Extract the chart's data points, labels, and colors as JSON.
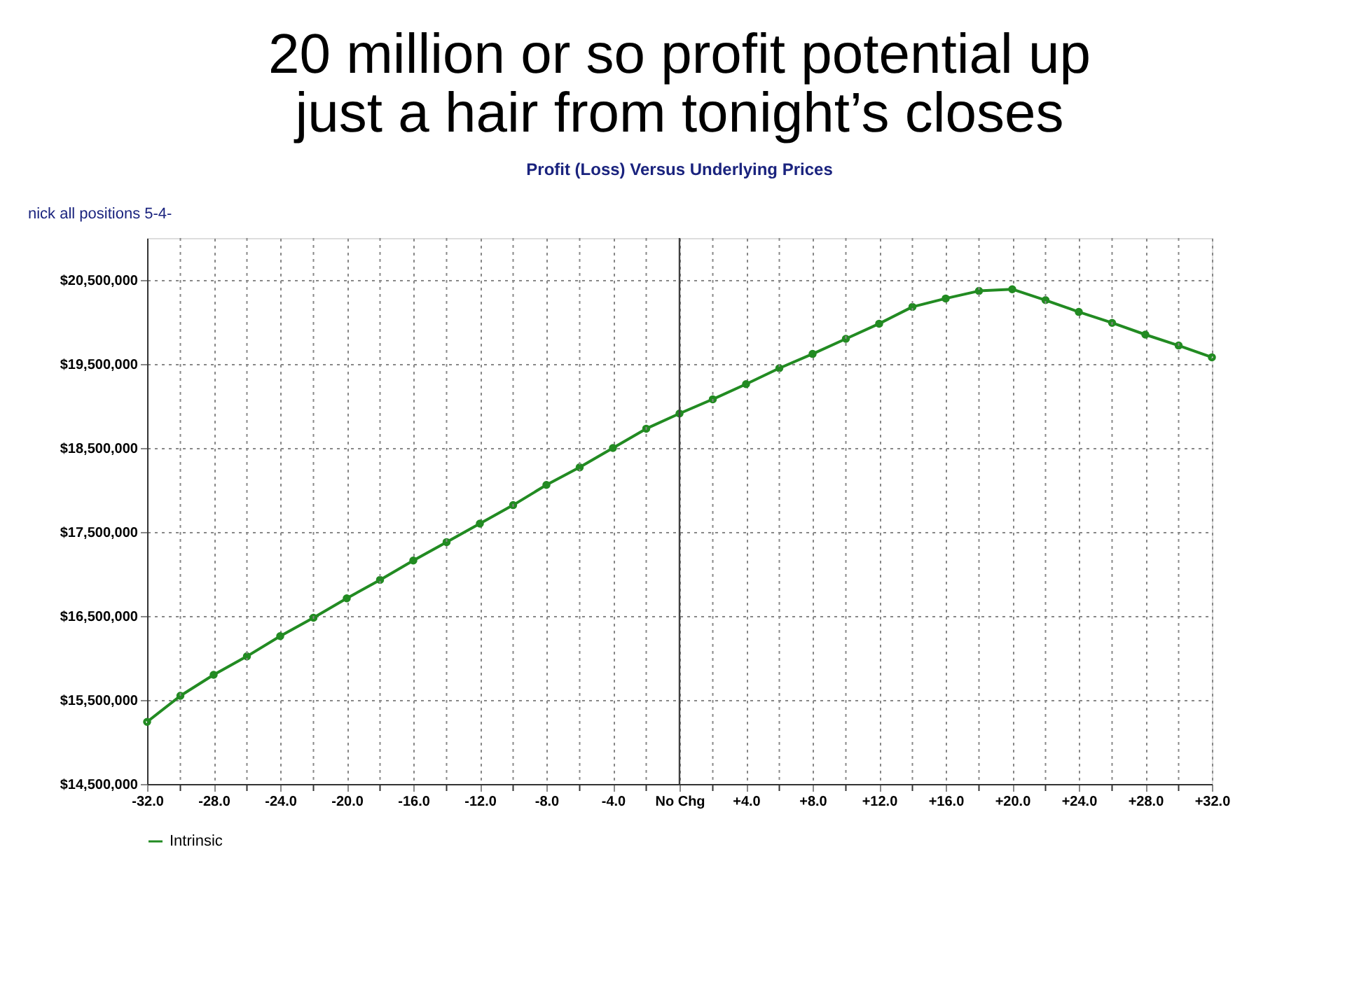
{
  "chart_data": {
    "type": "line",
    "title": "20 million or so profit potential up\njust a hair from tonight’s closes",
    "subtitle": "Profit (Loss) Versus Underlying Prices",
    "annotations": [
      "nick all positions 5-4-"
    ],
    "x": [
      -32,
      -30,
      -28,
      -26,
      -24,
      -22,
      -20,
      -18,
      -16,
      -14,
      -12,
      -10,
      -8,
      -6,
      -4,
      -2,
      0,
      2,
      4,
      6,
      8,
      10,
      12,
      14,
      16,
      18,
      20,
      22,
      24,
      26,
      28,
      30,
      32
    ],
    "series": [
      {
        "name": "Intrinsic",
        "color": "#228b22",
        "values": [
          15240000,
          15550000,
          15800000,
          16020000,
          16260000,
          16480000,
          16710000,
          16930000,
          17160000,
          17380000,
          17600000,
          17820000,
          18060000,
          18270000,
          18500000,
          18730000,
          18910000,
          19080000,
          19260000,
          19450000,
          19620000,
          19800000,
          19980000,
          20180000,
          20280000,
          20370000,
          20390000,
          20260000,
          20120000,
          19990000,
          19850000,
          19720000,
          19580000
        ]
      }
    ],
    "xlim": [
      -32,
      32
    ],
    "xticks": [
      {
        "value": -32,
        "label": "-32.0"
      },
      {
        "value": -30,
        "label": null
      },
      {
        "value": -28,
        "label": "-28.0"
      },
      {
        "value": -26,
        "label": null
      },
      {
        "value": -24,
        "label": "-24.0"
      },
      {
        "value": -22,
        "label": null
      },
      {
        "value": -20,
        "label": "-20.0"
      },
      {
        "value": -18,
        "label": null
      },
      {
        "value": -16,
        "label": "-16.0"
      },
      {
        "value": -14,
        "label": null
      },
      {
        "value": -12,
        "label": "-12.0"
      },
      {
        "value": -10,
        "label": null
      },
      {
        "value": -8,
        "label": "-8.0"
      },
      {
        "value": -6,
        "label": null
      },
      {
        "value": -4,
        "label": "-4.0"
      },
      {
        "value": -2,
        "label": null
      },
      {
        "value": 0,
        "label": "No Chg"
      },
      {
        "value": 2,
        "label": null
      },
      {
        "value": 4,
        "label": "+4.0"
      },
      {
        "value": 6,
        "label": null
      },
      {
        "value": 8,
        "label": "+8.0"
      },
      {
        "value": 10,
        "label": null
      },
      {
        "value": 12,
        "label": "+12.0"
      },
      {
        "value": 14,
        "label": null
      },
      {
        "value": 16,
        "label": "+16.0"
      },
      {
        "value": 18,
        "label": null
      },
      {
        "value": 20,
        "label": "+20.0"
      },
      {
        "value": 22,
        "label": null
      },
      {
        "value": 24,
        "label": "+24.0"
      },
      {
        "value": 26,
        "label": null
      },
      {
        "value": 28,
        "label": "+28.0"
      },
      {
        "value": 30,
        "label": null
      },
      {
        "value": 32,
        "label": "+32.0"
      }
    ],
    "ylim": [
      14500000,
      21000000
    ],
    "yticks": [
      {
        "value": 14500000,
        "label": "$14,500,000"
      },
      {
        "value": 15500000,
        "label": "$15,500,000"
      },
      {
        "value": 16500000,
        "label": "$16,500,000"
      },
      {
        "value": 17500000,
        "label": "$17,500,000"
      },
      {
        "value": 18500000,
        "label": "$18,500,000"
      },
      {
        "value": 19500000,
        "label": "$19,500,000"
      },
      {
        "value": 20500000,
        "label": "$20,500,000"
      }
    ],
    "ref_lines": [
      {
        "axis": "x",
        "value": 0,
        "label": null,
        "color": "#404040"
      }
    ],
    "grid": true,
    "legend": "bottom",
    "marker": "circle",
    "line_style": "solid"
  }
}
